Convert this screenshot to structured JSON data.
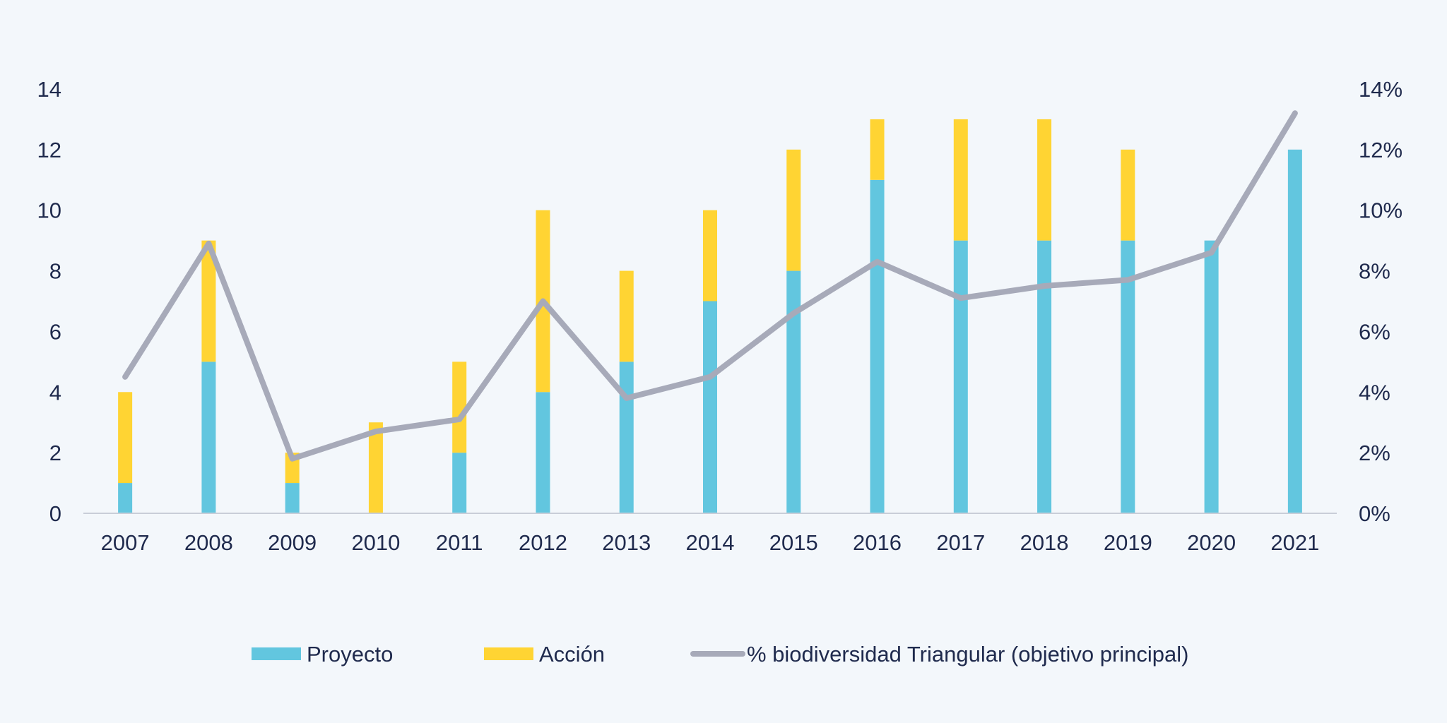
{
  "chart_data": {
    "type": "bar",
    "stacked": true,
    "categories": [
      "2007",
      "2008",
      "2009",
      "2010",
      "2011",
      "2012",
      "2013",
      "2014",
      "2015",
      "2016",
      "2017",
      "2018",
      "2019",
      "2020",
      "2021"
    ],
    "series": [
      {
        "name": "Proyecto",
        "type": "bar",
        "axis": "left",
        "color": "#62c6df",
        "values": [
          1,
          5,
          1,
          0,
          2,
          4,
          5,
          7,
          8,
          11,
          9,
          9,
          9,
          9,
          12
        ]
      },
      {
        "name": "Acción",
        "type": "bar",
        "axis": "left",
        "color": "#ffd433",
        "values": [
          3,
          4,
          1,
          3,
          3,
          6,
          3,
          3,
          4,
          2,
          4,
          4,
          3,
          0,
          0
        ]
      },
      {
        "name": "% biodiversidad Triangular (objetivo principal)",
        "type": "line",
        "axis": "right",
        "color": "#a7aab9",
        "values": [
          4.5,
          8.9,
          1.8,
          2.7,
          3.1,
          7.0,
          3.8,
          4.5,
          6.6,
          8.3,
          7.1,
          7.5,
          7.7,
          8.6,
          13.2
        ]
      }
    ],
    "y_left": {
      "ticks": [
        "0",
        "2",
        "4",
        "6",
        "8",
        "10",
        "12",
        "14"
      ],
      "ylim": [
        0,
        14
      ]
    },
    "y_right": {
      "ticks": [
        "0%",
        "2%",
        "4%",
        "6%",
        "8%",
        "10%",
        "12%",
        "14%"
      ],
      "ylim": [
        0,
        14
      ]
    },
    "grid": false,
    "legend_position": "bottom"
  }
}
